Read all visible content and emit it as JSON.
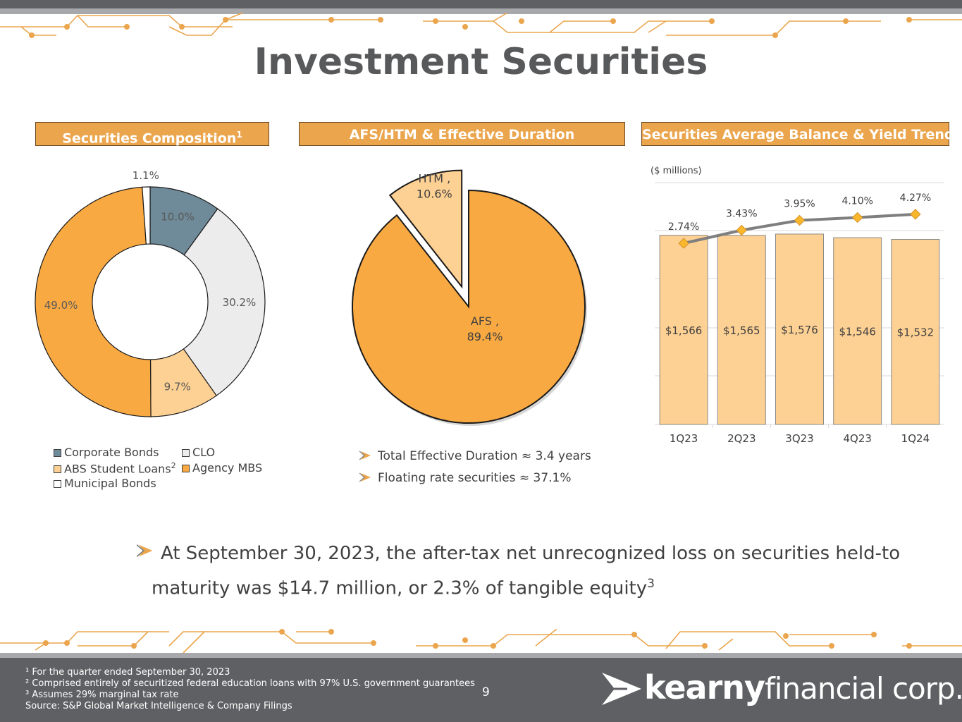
{
  "page": {
    "title": "Investment Securities",
    "page_number": "9"
  },
  "panels": {
    "composition": {
      "title": "Securities Composition",
      "title_sup": "1"
    },
    "afs_htm": {
      "title": "AFS/HTM & Effective Duration"
    },
    "balance": {
      "title": "Securities Average Balance & Yield Trend"
    }
  },
  "legend": {
    "corporate_bonds": "Corporate Bonds",
    "clo": "CLO",
    "abs_student_loans": "ABS Student Loans",
    "abs_sup": "2",
    "agency_mbs": "Agency MBS",
    "municipal_bonds": "Municipal Bonds"
  },
  "bullets": {
    "duration": "Total Effective Duration ≈ 3.4 years",
    "floating": "Floating rate securities ≈ 37.1%"
  },
  "statement": {
    "line1": "At September 30, 2023, the after-tax net unrecognized loss on securities held-to",
    "line2": "maturity was $14.7 million, or 2.3% of tangible equity",
    "sup": "3"
  },
  "footnotes": {
    "f1": "¹ For the quarter ended September 30, 2023",
    "f2": "² Comprised entirely of securitized federal education loans with 97% U.S. government guarantees",
    "f3": "³ Assumes 29% marginal tax rate",
    "source": " Source: S&P Global Market Intelligence & Company Filings"
  },
  "logo": {
    "bold": "kearny",
    "light": "financial corp."
  },
  "colors": {
    "accent": "#eba54d",
    "corporate_bonds": "#6f8a99",
    "clo": "#ececec",
    "abs_student_loans": "#fdd093",
    "agency_mbs": "#f9a942",
    "municipal_bonds": "#ffffff",
    "htm": "#fdd093",
    "afs": "#f9a942",
    "bar": "#fdd093",
    "yield_line": "#7f7f7f",
    "yield_marker": "#f9b72c",
    "footer": "#5f6063"
  },
  "chart_data": [
    {
      "type": "pie",
      "variant": "donut",
      "labels": [
        "Corporate Bonds",
        "CLO",
        "ABS Student Loans",
        "Agency MBS",
        "Municipal Bonds"
      ],
      "values": [
        10.0,
        30.2,
        9.7,
        49.0,
        1.1
      ],
      "value_labels": [
        "10.0%",
        "30.2%",
        "9.7%",
        "49.0%",
        "1.1%"
      ],
      "legend": "bottom"
    },
    {
      "type": "pie",
      "labels": [
        "HTM",
        "AFS"
      ],
      "values": [
        10.6,
        89.4
      ],
      "value_labels": [
        "HTM ,",
        "10.6%",
        "AFS ,",
        "89.4%"
      ],
      "exploded": "HTM"
    },
    {
      "type": "bar",
      "ylabel": "($ millions)",
      "categories": [
        "1Q23",
        "2Q23",
        "3Q23",
        "4Q23",
        "1Q24"
      ],
      "values": [
        1566,
        1565,
        1576,
        1546,
        1532
      ],
      "value_labels": [
        "$1,566",
        "$1,565",
        "$1,576",
        "$1,546",
        "$1,532"
      ],
      "ylim": [
        0,
        2200
      ],
      "grid": true,
      "line_series": {
        "values": [
          2.74,
          3.43,
          3.95,
          4.1,
          4.27
        ],
        "value_labels": [
          "2.74%",
          "3.43%",
          "3.95%",
          "4.10%",
          "4.27%"
        ]
      }
    }
  ]
}
